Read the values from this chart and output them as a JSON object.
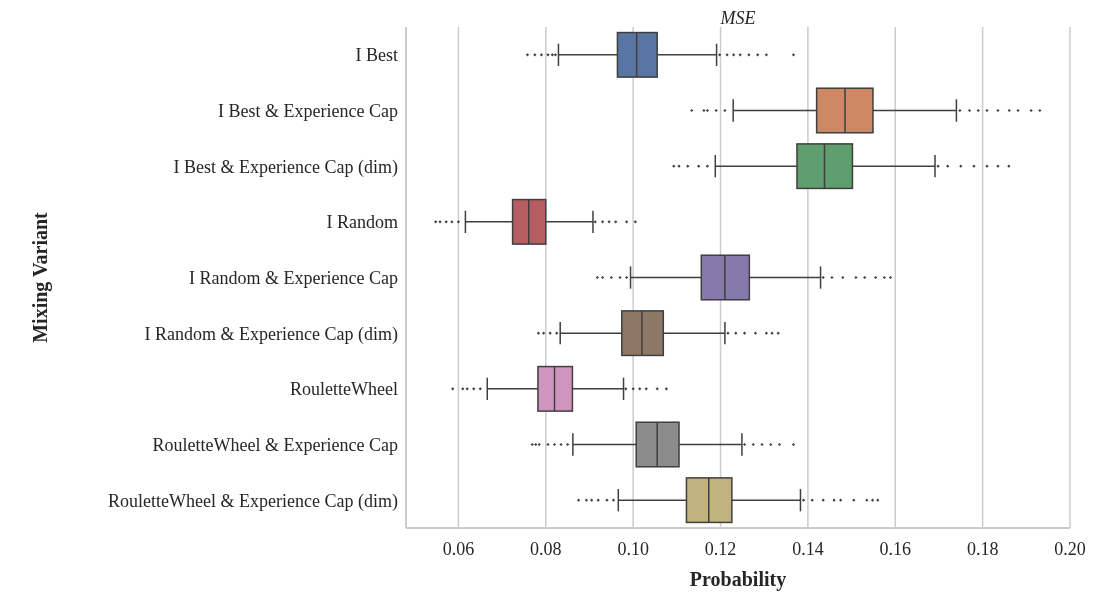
{
  "chart_data": {
    "type": "box",
    "orientation": "horizontal",
    "title": "MSE",
    "xlabel": "Probability",
    "ylabel": "Mixing Variant",
    "categories": [
      "I Best",
      "I Best & Experience Cap",
      "I Best & Experience Cap (dim)",
      "I Random",
      "I Random & Experience Cap",
      "I Random & Experience Cap (dim)",
      "RouletteWheel",
      "RouletteWheel & Experience Cap",
      "RouletteWheel & Experience Cap (dim)"
    ],
    "colors": [
      "#5975a4",
      "#cc8963",
      "#5f9e6e",
      "#b55d60",
      "#857aab",
      "#8d7866",
      "#d095bf",
      "#8c8c8c",
      "#c1b37f"
    ],
    "boxes": [
      {
        "low": 0.0829,
        "q1": 0.0964,
        "median": 0.1008,
        "q3": 0.1055,
        "high": 0.1191,
        "outliers": [
          0.0758,
          0.0775,
          0.079,
          0.0805,
          0.0815,
          0.0822,
          0.1198,
          0.1215,
          0.123,
          0.1245,
          0.1265,
          0.1285,
          0.1305,
          0.1367
        ]
      },
      {
        "low": 0.1229,
        "q1": 0.142,
        "median": 0.1485,
        "q3": 0.1549,
        "high": 0.174,
        "outliers": [
          0.1134,
          0.1162,
          0.117,
          0.119,
          0.121,
          0.1748,
          0.177,
          0.179,
          0.181,
          0.1835,
          0.1861,
          0.1881,
          0.1911,
          0.1931
        ]
      },
      {
        "low": 0.1188,
        "q1": 0.1375,
        "median": 0.1438,
        "q3": 0.1502,
        "high": 0.1691,
        "outliers": [
          0.1093,
          0.1105,
          0.1125,
          0.115,
          0.117,
          0.1698,
          0.172,
          0.175,
          0.178,
          0.181,
          0.1835,
          0.186
        ]
      },
      {
        "low": 0.0616,
        "q1": 0.0724,
        "median": 0.0761,
        "q3": 0.08,
        "high": 0.0908,
        "outliers": [
          0.0548,
          0.0558,
          0.0572,
          0.0585,
          0.06,
          0.0913,
          0.093,
          0.0945,
          0.096,
          0.0985,
          0.1005
        ]
      },
      {
        "low": 0.0994,
        "q1": 0.1156,
        "median": 0.121,
        "q3": 0.1266,
        "high": 0.1429,
        "outliers": [
          0.0918,
          0.093,
          0.095,
          0.097,
          0.0985,
          0.1435,
          0.1455,
          0.148,
          0.151,
          0.153,
          0.1555,
          0.1575,
          0.1589
        ]
      },
      {
        "low": 0.0833,
        "q1": 0.0974,
        "median": 0.102,
        "q3": 0.1069,
        "high": 0.121,
        "outliers": [
          0.0783,
          0.0795,
          0.081,
          0.0825,
          0.1217,
          0.1235,
          0.1255,
          0.128,
          0.1305,
          0.1318,
          0.1332
        ]
      },
      {
        "low": 0.0666,
        "q1": 0.0782,
        "median": 0.082,
        "q3": 0.0861,
        "high": 0.0978,
        "outliers": [
          0.0587,
          0.061,
          0.062,
          0.0635,
          0.065,
          0.0983,
          0.1,
          0.1015,
          0.103,
          0.1055,
          0.1076
        ]
      },
      {
        "low": 0.0862,
        "q1": 0.1007,
        "median": 0.1055,
        "q3": 0.1105,
        "high": 0.1249,
        "outliers": [
          0.0769,
          0.0777,
          0.0785,
          0.0805,
          0.082,
          0.0835,
          0.085,
          0.1255,
          0.1275,
          0.1295,
          0.1315,
          0.1335,
          0.1367
        ]
      },
      {
        "low": 0.0966,
        "q1": 0.1122,
        "median": 0.1173,
        "q3": 0.1226,
        "high": 0.1383,
        "outliers": [
          0.0875,
          0.0893,
          0.0905,
          0.092,
          0.094,
          0.0955,
          0.139,
          0.141,
          0.1435,
          0.146,
          0.1475,
          0.1505,
          0.1535,
          0.1548,
          0.156
        ]
      }
    ],
    "xlim": [
      0.048,
      0.2
    ],
    "xticks": [
      {
        "value": 0.06,
        "label": "0.06"
      },
      {
        "value": 0.08,
        "label": "0.08"
      },
      {
        "value": 0.1,
        "label": "0.10"
      },
      {
        "value": 0.12,
        "label": "0.12"
      },
      {
        "value": 0.14,
        "label": "0.14"
      },
      {
        "value": 0.16,
        "label": "0.16"
      },
      {
        "value": 0.18,
        "label": "0.18"
      },
      {
        "value": 0.2,
        "label": "0.20"
      }
    ],
    "grid": "x"
  }
}
